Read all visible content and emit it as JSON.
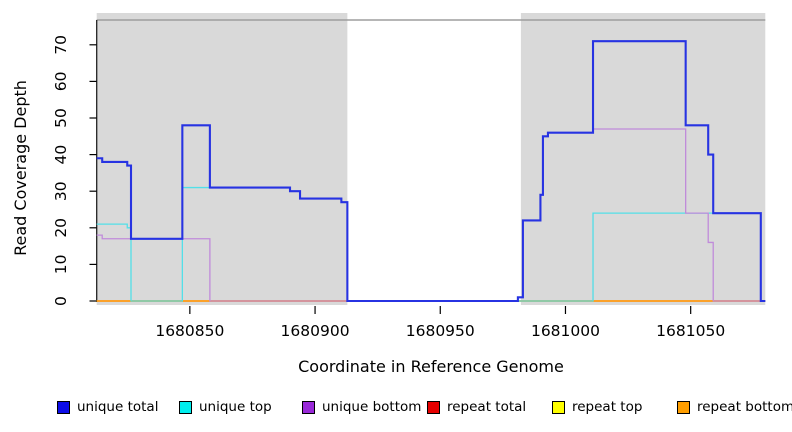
{
  "figure": {
    "background": "#ffffff",
    "panel_background": "#d9d9d9"
  },
  "legend": {
    "items": [
      {
        "label": "unique total",
        "color": "#0d0de8"
      },
      {
        "label": "unique top",
        "color": "#00eeee"
      },
      {
        "label": "unique bottom",
        "color": "#9929d8"
      },
      {
        "label": "repeat total",
        "color": "#e60000"
      },
      {
        "label": "repeat top",
        "color": "#ffff00"
      },
      {
        "label": "repeat bottom",
        "color": "#ff9e00"
      }
    ]
  },
  "chart_data": {
    "type": "line",
    "step": "after",
    "title": "",
    "xlabel": "Coordinate in Reference Genome",
    "ylabel": "Read Coverage Depth",
    "x_domain": [
      1680812.8,
      1681079.8
    ],
    "ylim": [
      0,
      76.8
    ],
    "x_ticks": [
      {
        "value": 1680850,
        "label": "1680850"
      },
      {
        "value": 1680900,
        "label": "1680900"
      },
      {
        "value": 1680950,
        "label": "1680950"
      },
      {
        "value": 1681000,
        "label": "1681000"
      },
      {
        "value": 1681050,
        "label": "1681050"
      }
    ],
    "y_ticks": [
      {
        "value": 0,
        "label": "0"
      },
      {
        "value": 10,
        "label": "10"
      },
      {
        "value": 20,
        "label": "20"
      },
      {
        "value": 30,
        "label": "30"
      },
      {
        "value": 40,
        "label": "40"
      },
      {
        "value": 50,
        "label": "50"
      },
      {
        "value": 60,
        "label": "60"
      },
      {
        "value": 70,
        "label": "70"
      }
    ],
    "covered_regions": [
      [
        1680812.8,
        1680912.9
      ],
      [
        1680982.2,
        1681079.8
      ]
    ],
    "uncovered_region": [
      1680912.9,
      1680982.2
    ],
    "grid": false,
    "legend_position": "bottom",
    "series": [
      {
        "name": "repeat-total",
        "label": "repeat total",
        "color": "#e03030",
        "width": 1.2,
        "points": [
          [
            1680812.8,
            0
          ],
          [
            1681079.8,
            0
          ]
        ]
      },
      {
        "name": "repeat-top",
        "label": "repeat top",
        "color": "#f2f200",
        "width": 1.2,
        "points": [
          [
            1680812.8,
            0
          ],
          [
            1681079.8,
            0
          ]
        ]
      },
      {
        "name": "repeat-bottom",
        "label": "repeat bottom",
        "color": "#ff9d1e",
        "width": 1.7,
        "points": [
          [
            1680812.8,
            0
          ],
          [
            1681079.8,
            0
          ]
        ]
      },
      {
        "name": "unique-top",
        "label": "unique top",
        "color": "#52dfe8",
        "width": 1.3,
        "points": [
          [
            1680812.8,
            21
          ],
          [
            1680825,
            20
          ],
          [
            1680826.5,
            0
          ],
          [
            1680847,
            31
          ],
          [
            1680890,
            30
          ],
          [
            1680894,
            28
          ],
          [
            1680910.5,
            27
          ],
          [
            1680912.9,
            0
          ],
          [
            1681011,
            24
          ],
          [
            1681078,
            0
          ],
          [
            1681079.8,
            0
          ]
        ]
      },
      {
        "name": "unique-bottom",
        "label": "unique bottom",
        "color": "#c08bda",
        "width": 1.3,
        "points": [
          [
            1680812.8,
            18
          ],
          [
            1680815,
            17
          ],
          [
            1680858,
            0
          ],
          [
            1680981,
            1
          ],
          [
            1680983,
            22
          ],
          [
            1680990,
            29
          ],
          [
            1680991,
            45
          ],
          [
            1680993,
            46
          ],
          [
            1681011,
            47
          ],
          [
            1681048,
            24
          ],
          [
            1681057,
            16
          ],
          [
            1681059,
            0
          ],
          [
            1681079.8,
            0
          ]
        ]
      },
      {
        "name": "unique-total",
        "label": "unique total",
        "color": "#2733e2",
        "width": 2.1,
        "points": [
          [
            1680812.8,
            39
          ],
          [
            1680815,
            38
          ],
          [
            1680825,
            37
          ],
          [
            1680826.5,
            17
          ],
          [
            1680847,
            48
          ],
          [
            1680858,
            31
          ],
          [
            1680890,
            30
          ],
          [
            1680894,
            28
          ],
          [
            1680910.5,
            27
          ],
          [
            1680912.9,
            0
          ],
          [
            1680981,
            1
          ],
          [
            1680983,
            22
          ],
          [
            1680990,
            29
          ],
          [
            1680991,
            45
          ],
          [
            1680993,
            46
          ],
          [
            1681011,
            71
          ],
          [
            1681048,
            48
          ],
          [
            1681057,
            40
          ],
          [
            1681059,
            24
          ],
          [
            1681078,
            0
          ],
          [
            1681079.8,
            0
          ]
        ]
      }
    ]
  }
}
